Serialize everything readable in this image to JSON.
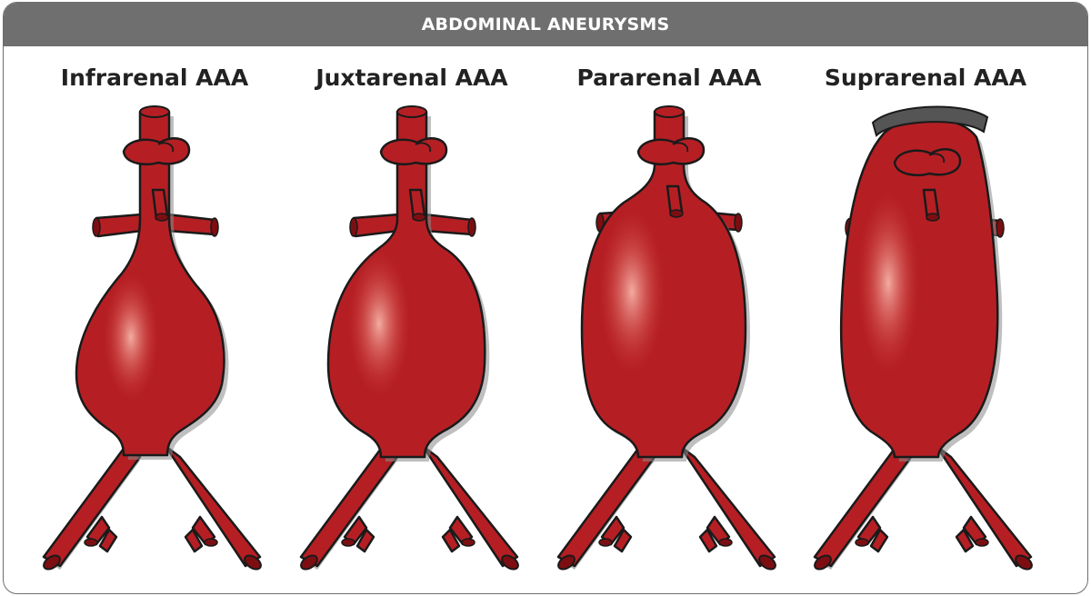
{
  "header": {
    "title": "ABDOMINAL ANEURYSMS"
  },
  "colors": {
    "vessel": "#b51f24",
    "vessel_dark": "#7c0e12",
    "outline": "#1a1a1a",
    "shadow": "#8a8a8a",
    "header_bg": "#6f6f6f",
    "cap": "#555555"
  },
  "panels": [
    {
      "title": "Infrarenal AAA",
      "type": "infrarenal"
    },
    {
      "title": "Juxtarenal AAA",
      "type": "juxtarenal"
    },
    {
      "title": "Pararenal AAA",
      "type": "pararenal"
    },
    {
      "title": "Suprarenal AAA",
      "type": "suprarenal"
    }
  ]
}
